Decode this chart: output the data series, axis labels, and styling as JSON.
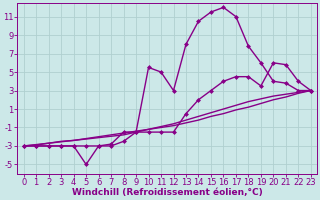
{
  "bg_color": "#cce8e8",
  "grid_color": "#b0d0d0",
  "line_color": "#880088",
  "marker": "D",
  "marker_size": 2.5,
  "line_width": 1.0,
  "xlabel": "Windchill (Refroidissement éolien,°C)",
  "xlabel_color": "#880088",
  "xlabel_fontsize": 6.5,
  "tick_color": "#880088",
  "tick_fontsize": 6,
  "ylim": [
    -6,
    12.5
  ],
  "xlim": [
    -0.5,
    23.5
  ],
  "yticks": [
    -5,
    -3,
    -1,
    1,
    3,
    5,
    7,
    9,
    11
  ],
  "xticks": [
    0,
    1,
    2,
    3,
    4,
    5,
    6,
    7,
    8,
    9,
    10,
    11,
    12,
    13,
    14,
    15,
    16,
    17,
    18,
    19,
    20,
    21,
    22,
    23
  ],
  "series": [
    {
      "x": [
        0,
        1,
        2,
        3,
        4,
        5,
        6,
        7,
        8,
        9,
        10,
        11,
        12,
        13,
        14,
        15,
        16,
        17,
        18,
        19,
        20,
        21,
        22,
        23
      ],
      "y": [
        -3,
        -3,
        -3,
        -3,
        -3,
        -5,
        -3,
        -2.8,
        -1.5,
        -1.5,
        5.5,
        5,
        3.0,
        8.0,
        10.5,
        11.5,
        12.0,
        11.0,
        7.8,
        6.0,
        4.0,
        3.8,
        3.0,
        3.0
      ],
      "has_markers": true
    },
    {
      "x": [
        0,
        1,
        2,
        3,
        4,
        5,
        6,
        7,
        8,
        9,
        10,
        11,
        12,
        13,
        14,
        15,
        16,
        17,
        18,
        19,
        20,
        21,
        22,
        23
      ],
      "y": [
        -3,
        -3,
        -3,
        -3,
        -3,
        -3,
        -3,
        -3,
        -2.5,
        -1.5,
        -1.5,
        -1.5,
        -1.5,
        0.5,
        2.0,
        3.0,
        4.0,
        4.5,
        4.5,
        3.5,
        6.0,
        5.8,
        4.0,
        3.0
      ],
      "has_markers": true
    },
    {
      "x": [
        0,
        1,
        2,
        3,
        4,
        5,
        6,
        7,
        8,
        9,
        10,
        11,
        12,
        13,
        14,
        15,
        16,
        17,
        18,
        19,
        20,
        21,
        22,
        23
      ],
      "y": [
        -3,
        -2.9,
        -2.7,
        -2.5,
        -2.4,
        -2.2,
        -2.0,
        -1.8,
        -1.6,
        -1.4,
        -1.2,
        -1.0,
        -0.8,
        -0.5,
        -0.2,
        0.2,
        0.5,
        0.9,
        1.2,
        1.6,
        2.0,
        2.3,
        2.7,
        3.0
      ],
      "has_markers": false
    },
    {
      "x": [
        0,
        1,
        2,
        3,
        4,
        5,
        6,
        7,
        8,
        9,
        10,
        11,
        12,
        13,
        14,
        15,
        16,
        17,
        18,
        19,
        20,
        21,
        22,
        23
      ],
      "y": [
        -3,
        -2.85,
        -2.7,
        -2.55,
        -2.4,
        -2.25,
        -2.1,
        -1.95,
        -1.8,
        -1.5,
        -1.2,
        -0.9,
        -0.6,
        -0.2,
        0.2,
        0.6,
        1.0,
        1.4,
        1.8,
        2.1,
        2.4,
        2.6,
        2.8,
        3.0
      ],
      "has_markers": false
    }
  ]
}
